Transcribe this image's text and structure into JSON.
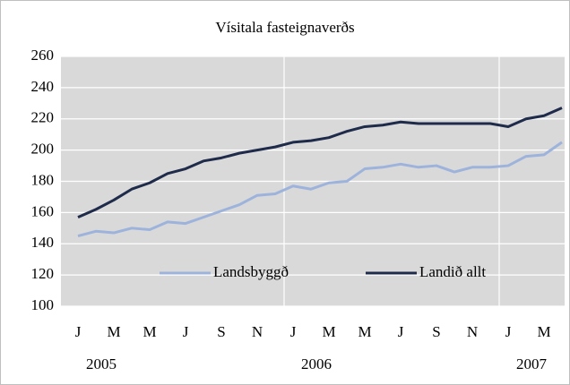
{
  "chart_data": {
    "type": "line",
    "title": "Vísitala fasteignaverðs",
    "categories": [
      "J",
      null,
      "M",
      null,
      "M",
      null,
      "J",
      null,
      "S",
      null,
      "N",
      null,
      "J",
      null,
      "M",
      null,
      "M",
      null,
      "J",
      null,
      "S",
      null,
      "N",
      null,
      "J",
      null,
      "M",
      null
    ],
    "years": [
      "2005",
      "2006",
      "2007"
    ],
    "series": [
      {
        "name": "Landsbyggð",
        "color": "#9db3dc",
        "values": [
          145,
          148,
          147,
          150,
          149,
          154,
          153,
          157,
          161,
          165,
          171,
          172,
          177,
          175,
          179,
          180,
          188,
          189,
          191,
          189,
          190,
          186,
          189,
          189,
          190,
          196,
          197,
          205
        ]
      },
      {
        "name": "Landið allt",
        "color": "#1f2b4a",
        "values": [
          157,
          162,
          168,
          175,
          179,
          185,
          188,
          193,
          195,
          198,
          200,
          202,
          205,
          206,
          208,
          212,
          215,
          216,
          218,
          217,
          217,
          217,
          217,
          217,
          215,
          220,
          222,
          227
        ]
      }
    ],
    "ylim": [
      100,
      260
    ],
    "yticks": [
      100,
      120,
      140,
      160,
      180,
      200,
      220,
      240,
      260
    ],
    "grid": true,
    "legend": "lower center"
  }
}
